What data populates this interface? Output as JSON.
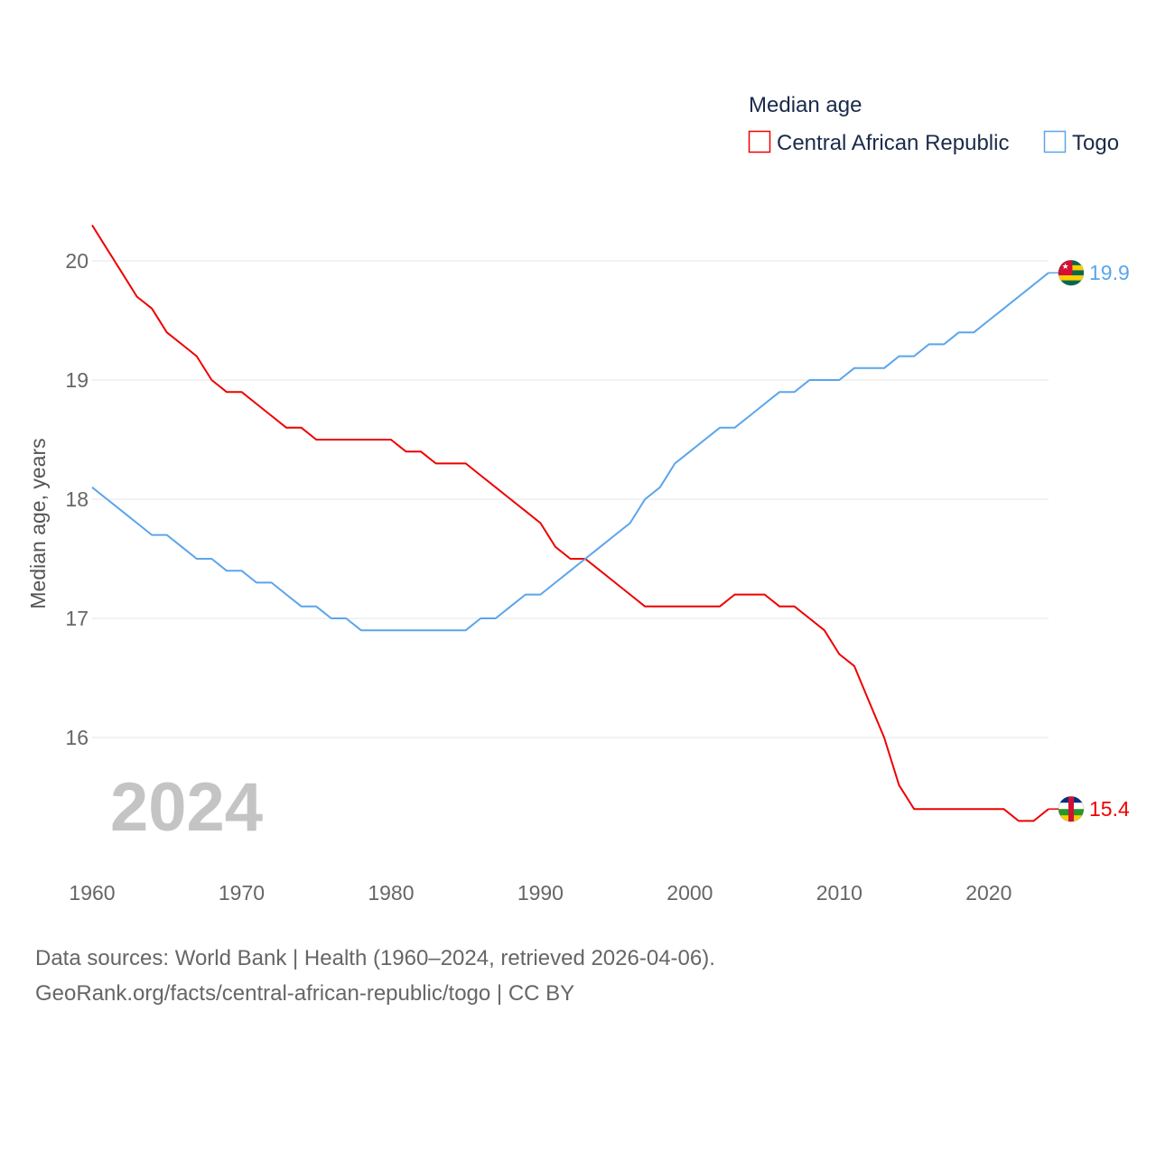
{
  "chart_data": {
    "type": "line",
    "title": "Median age",
    "ylabel": "Median age, years",
    "xlabel": "",
    "xlim": [
      1960,
      2024
    ],
    "ylim": [
      15.1,
      20.4
    ],
    "grid": true,
    "legend_position": "top-right",
    "x_ticks": [
      1960,
      1970,
      1980,
      1990,
      2000,
      2010,
      2020
    ],
    "y_ticks": [
      16,
      17,
      18,
      19,
      20
    ],
    "year_watermark": "2024",
    "series": [
      {
        "name": "Central African Republic",
        "color": "#ee0000",
        "end_label": "15.4",
        "flag": "central-african-republic",
        "start_year": 1960,
        "values": [
          20.3,
          20.1,
          19.9,
          19.7,
          19.6,
          19.4,
          19.3,
          19.2,
          19.0,
          18.9,
          18.9,
          18.8,
          18.7,
          18.6,
          18.6,
          18.5,
          18.5,
          18.5,
          18.5,
          18.5,
          18.5,
          18.4,
          18.4,
          18.3,
          18.3,
          18.3,
          18.2,
          18.1,
          18.0,
          17.9,
          17.8,
          17.6,
          17.5,
          17.5,
          17.4,
          17.3,
          17.2,
          17.1,
          17.1,
          17.1,
          17.1,
          17.1,
          17.1,
          17.2,
          17.2,
          17.2,
          17.1,
          17.1,
          17.0,
          16.9,
          16.7,
          16.6,
          16.3,
          16.0,
          15.6,
          15.4,
          15.4,
          15.4,
          15.4,
          15.4,
          15.4,
          15.4,
          15.3,
          15.3,
          15.4
        ]
      },
      {
        "name": "Togo",
        "color": "#5aa5ec",
        "end_label": "19.9",
        "flag": "togo",
        "start_year": 1960,
        "values": [
          18.1,
          18.0,
          17.9,
          17.8,
          17.7,
          17.7,
          17.6,
          17.5,
          17.5,
          17.4,
          17.4,
          17.3,
          17.3,
          17.2,
          17.1,
          17.1,
          17.0,
          17.0,
          16.9,
          16.9,
          16.9,
          16.9,
          16.9,
          16.9,
          16.9,
          16.9,
          17.0,
          17.0,
          17.1,
          17.2,
          17.2,
          17.3,
          17.4,
          17.5,
          17.6,
          17.7,
          17.8,
          18.0,
          18.1,
          18.3,
          18.4,
          18.5,
          18.6,
          18.6,
          18.7,
          18.8,
          18.9,
          18.9,
          19.0,
          19.0,
          19.0,
          19.1,
          19.1,
          19.1,
          19.2,
          19.2,
          19.3,
          19.3,
          19.4,
          19.4,
          19.5,
          19.6,
          19.7,
          19.8,
          19.9
        ]
      }
    ]
  },
  "footer": {
    "sources": "Data sources: World Bank | Health (1960–2024, retrieved 2026-04-06).",
    "attribution": "GeoRank.org/facts/central-african-republic/togo | CC BY"
  }
}
